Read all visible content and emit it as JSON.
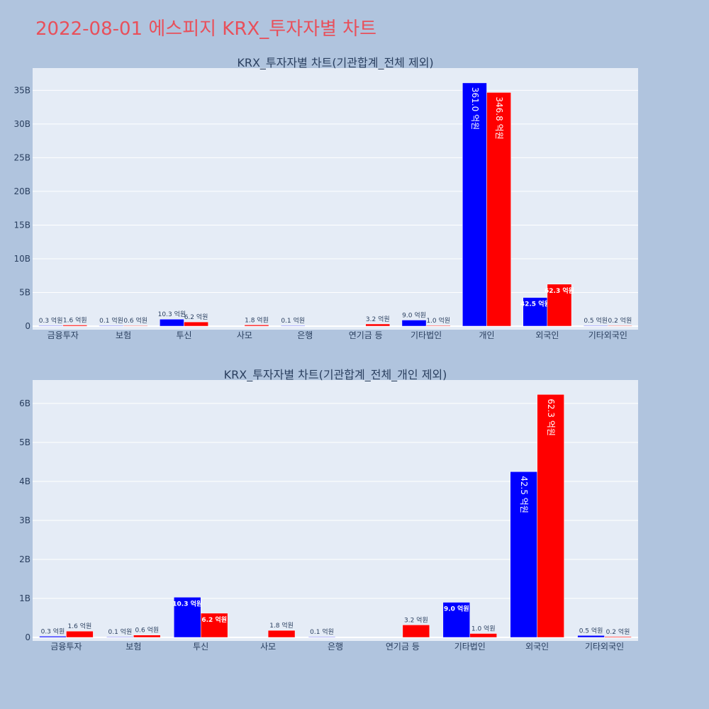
{
  "page_title": "2022-08-01 에스피지 KRX_투자자별 차트",
  "colors": {
    "background": "#b0c4de",
    "plot_bg": "#e5ecf6",
    "title": "#e8505b",
    "buy": "#0000ff",
    "sell": "#ff0000",
    "text": "#2a3f5f"
  },
  "chart_data": [
    {
      "type": "bar",
      "title": "KRX_투자자별 차트(기관합계_전체 제외)",
      "categories": [
        "금융투자",
        "보험",
        "투신",
        "사모",
        "은행",
        "연기금 등",
        "기타법인",
        "개인",
        "외국인",
        "기타외국인"
      ],
      "series": [
        {
          "color": "#0000ff",
          "values": [
            0.03,
            0.01,
            1.03,
            null,
            0.01,
            null,
            0.9,
            36.1,
            4.25,
            0.05
          ],
          "labels": [
            "0.3 억원",
            "0.1 억원",
            "10.3 억원",
            "",
            "0.1 억원",
            "",
            "9.0 억원",
            "361.0 억원",
            "42.5 억원",
            "0.5 억원"
          ]
        },
        {
          "color": "#ff0000",
          "values": [
            0.16,
            0.06,
            0.62,
            0.18,
            null,
            0.32,
            0.1,
            34.68,
            6.23,
            0.02
          ],
          "labels": [
            "1.6 억원",
            "0.6 억원",
            "6.2 억원",
            "1.8 억원",
            "",
            "3.2 억원",
            "1.0 억원",
            "346.8 억원",
            "62.3 억원",
            "0.2 억원"
          ]
        }
      ],
      "yticks": [
        0,
        5,
        10,
        15,
        20,
        25,
        30,
        35
      ],
      "ytick_labels": [
        "0",
        "5B",
        "10B",
        "15B",
        "20B",
        "25B",
        "30B",
        "35B"
      ],
      "ylim": [
        0,
        38.3
      ],
      "grid": true
    },
    {
      "type": "bar",
      "title": "KRX_투자자별 차트(기관합계_전체_개인 제외)",
      "categories": [
        "금융투자",
        "보험",
        "투신",
        "사모",
        "은행",
        "연기금 등",
        "기타법인",
        "외국인",
        "기타외국인"
      ],
      "series": [
        {
          "color": "#0000ff",
          "values": [
            0.03,
            0.01,
            1.03,
            null,
            0.01,
            null,
            0.9,
            4.25,
            0.05
          ],
          "labels": [
            "0.3 억원",
            "0.1 억원",
            "10.3 억원",
            "",
            "0.1 억원",
            "",
            "9.0 억원",
            "42.5 억원",
            "0.5 억원"
          ]
        },
        {
          "color": "#ff0000",
          "values": [
            0.16,
            0.06,
            0.62,
            0.18,
            null,
            0.32,
            0.1,
            6.23,
            0.02
          ],
          "labels": [
            "1.6 억원",
            "0.6 억원",
            "6.2 억원",
            "1.8 억원",
            "",
            "3.2 억원",
            "1.0 억원",
            "62.3 억원",
            "0.2 억원"
          ]
        }
      ],
      "yticks": [
        0,
        1,
        2,
        3,
        4,
        5,
        6
      ],
      "ytick_labels": [
        "0",
        "1B",
        "2B",
        "3B",
        "4B",
        "5B",
        "6B"
      ],
      "ylim": [
        0,
        6.6
      ],
      "grid": true
    }
  ]
}
